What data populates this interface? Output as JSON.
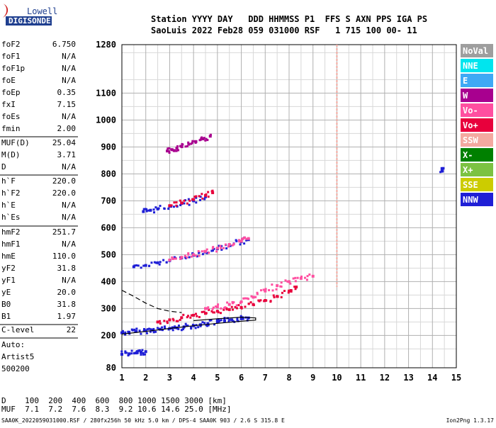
{
  "logo": {
    "line1": "Lowell",
    "line2": "DIGISONDE"
  },
  "header": {
    "row1": "Station YYYY DAY   DDD HHMMSS P1  FFS S AXN PPS IGA PS",
    "row2": "SaoLuis 2022 Feb28 059 031000 RSF   1 715 100 00- 11"
  },
  "params": [
    {
      "label": "foF2",
      "value": "6.750"
    },
    {
      "label": "foF1",
      "value": "N/A"
    },
    {
      "label": "foF1p",
      "value": "N/A"
    },
    {
      "label": "foE",
      "value": "N/A"
    },
    {
      "label": "foEp",
      "value": "0.35"
    },
    {
      "label": "fxI",
      "value": "7.15"
    },
    {
      "label": "foEs",
      "value": "N/A"
    },
    {
      "label": "fmin",
      "value": "2.00"
    },
    {
      "label": "MUF(D)",
      "value": "25.04"
    },
    {
      "label": "M(D)",
      "value": "3.71"
    },
    {
      "label": "D",
      "value": "N/A"
    },
    {
      "label": "h`F",
      "value": "220.0"
    },
    {
      "label": "h`F2",
      "value": "220.0"
    },
    {
      "label": "h`E",
      "value": "N/A"
    },
    {
      "label": "h`Es",
      "value": "N/A"
    },
    {
      "label": "hmF2",
      "value": "251.7"
    },
    {
      "label": "hmF1",
      "value": "N/A"
    },
    {
      "label": "hmE",
      "value": "110.0"
    },
    {
      "label": "yF2",
      "value": "31.8"
    },
    {
      "label": "yF1",
      "value": "N/A"
    },
    {
      "label": "yE",
      "value": "20.0"
    },
    {
      "label": "B0",
      "value": "31.8"
    },
    {
      "label": "B1",
      "value": "1.97"
    },
    {
      "label": "C-level",
      "value": "22"
    }
  ],
  "autoscale": {
    "line1": "Auto:",
    "line2": "Artist5",
    "line3": "500200"
  },
  "legend": [
    {
      "label": "NoVal",
      "bg": "#9e9e9e",
      "fg": "#ffffff"
    },
    {
      "label": "NNE",
      "bg": "#00e5ee",
      "fg": "#ffffff"
    },
    {
      "label": "E",
      "bg": "#3fa9f5",
      "fg": "#ffffff"
    },
    {
      "label": "W",
      "bg": "#a8008f",
      "fg": "#ffffff"
    },
    {
      "label": "Vo-",
      "bg": "#ff4fa0",
      "fg": "#ffffff"
    },
    {
      "label": "Vo+",
      "bg": "#e8003c",
      "fg": "#ffffff"
    },
    {
      "label": "SSW",
      "bg": "#f4a9a0",
      "fg": "#ffffff"
    },
    {
      "label": "X-",
      "bg": "#008000",
      "fg": "#ffffff"
    },
    {
      "label": "X+",
      "bg": "#7cc242",
      "fg": "#ffffff"
    },
    {
      "label": "SSE",
      "bg": "#cccc00",
      "fg": "#ffffff"
    },
    {
      "label": "NNW",
      "bg": "#1f1fd6",
      "fg": "#ffffff"
    }
  ],
  "muf_table": {
    "row1": "D    100  200  400  600  800 1000 1500 3000 [km]",
    "row2": "MUF  7.1  7.2  7.6  8.3  9.2 10.6 14.6 25.0 [MHz]"
  },
  "footer": {
    "left": "SAA0K_2022059031000.RSF / 280fx256h 50 kHz 5.0 km / DPS-4 SAA0K 903 / 2.6 S 315.8 E",
    "right": "Ion2Png 1.3.17"
  },
  "chart_data": {
    "type": "scatter",
    "x_ticks": [
      1,
      2,
      3,
      4,
      5,
      6,
      7,
      8,
      9,
      10,
      11,
      12,
      13,
      14,
      15
    ],
    "y_ticks": [
      80,
      200,
      300,
      400,
      500,
      600,
      700,
      800,
      900,
      1000,
      1100,
      1280
    ],
    "xlim": [
      1,
      15
    ],
    "ylim": [
      80,
      1280
    ],
    "grid": true,
    "legend_placement": "right",
    "traces": [
      {
        "color": "#1f1fd6",
        "points": [
          [
            1.0,
            210
          ],
          [
            1.3,
            212
          ],
          [
            1.6,
            215
          ],
          [
            2.0,
            218
          ],
          [
            2.3,
            220
          ],
          [
            2.6,
            223
          ],
          [
            3.0,
            226
          ],
          [
            3.3,
            228
          ],
          [
            3.6,
            232
          ],
          [
            4.0,
            236
          ],
          [
            4.3,
            240
          ],
          [
            4.6,
            244
          ],
          [
            5.0,
            250
          ],
          [
            5.3,
            254
          ],
          [
            5.6,
            258
          ],
          [
            6.0,
            262
          ],
          [
            6.3,
            265
          ]
        ]
      },
      {
        "color": "#e8003c",
        "points": [
          [
            2.5,
            250
          ],
          [
            3.0,
            258
          ],
          [
            3.5,
            266
          ],
          [
            4.0,
            275
          ],
          [
            4.5,
            282
          ],
          [
            5.0,
            290
          ],
          [
            5.5,
            296
          ],
          [
            6.0,
            304
          ],
          [
            6.5,
            315
          ],
          [
            7.0,
            330
          ],
          [
            7.5,
            345
          ],
          [
            8.0,
            365
          ],
          [
            8.3,
            380
          ]
        ]
      },
      {
        "color": "#ff4fa0",
        "points": [
          [
            4.5,
            300
          ],
          [
            5.0,
            306
          ],
          [
            5.5,
            315
          ],
          [
            6.0,
            325
          ],
          [
            6.5,
            342
          ],
          [
            7.0,
            365
          ],
          [
            7.5,
            385
          ],
          [
            8.0,
            400
          ],
          [
            8.5,
            412
          ],
          [
            9.0,
            420
          ]
        ]
      },
      {
        "color": "#1f1fd6",
        "points": [
          [
            1.5,
            455
          ],
          [
            2.0,
            460
          ],
          [
            2.5,
            470
          ],
          [
            3.0,
            478
          ],
          [
            3.5,
            488
          ],
          [
            4.0,
            498
          ],
          [
            4.5,
            510
          ],
          [
            5.0,
            522
          ],
          [
            5.5,
            535
          ],
          [
            6.0,
            548
          ],
          [
            6.3,
            556
          ]
        ]
      },
      {
        "color": "#ff4fa0",
        "points": [
          [
            3.0,
            480
          ],
          [
            3.5,
            490
          ],
          [
            4.0,
            500
          ],
          [
            4.5,
            512
          ],
          [
            5.0,
            524
          ],
          [
            5.5,
            538
          ],
          [
            6.0,
            550
          ],
          [
            6.3,
            560
          ]
        ]
      },
      {
        "color": "#1f1fd6",
        "points": [
          [
            1.9,
            660
          ],
          [
            2.2,
            665
          ],
          [
            2.5,
            670
          ],
          [
            3.0,
            680
          ],
          [
            3.5,
            690
          ],
          [
            4.0,
            700
          ],
          [
            4.5,
            715
          ]
        ]
      },
      {
        "color": "#e8003c",
        "points": [
          [
            3.0,
            682
          ],
          [
            3.5,
            692
          ],
          [
            4.0,
            705
          ],
          [
            4.5,
            720
          ],
          [
            4.8,
            730
          ]
        ]
      },
      {
        "color": "#a8008f",
        "points": [
          [
            2.9,
            885
          ],
          [
            3.1,
            890
          ],
          [
            3.3,
            896
          ],
          [
            3.5,
            902
          ],
          [
            3.8,
            910
          ],
          [
            4.1,
            920
          ],
          [
            4.4,
            930
          ],
          [
            4.7,
            940
          ]
        ]
      },
      {
        "color": "#1f1fd6",
        "points": [
          [
            1.0,
            130
          ],
          [
            1.3,
            132
          ],
          [
            1.6,
            135
          ],
          [
            1.8,
            138
          ],
          [
            2.0,
            140
          ]
        ]
      },
      {
        "color": "#1f1fd6",
        "points": [
          [
            14.4,
            810
          ],
          [
            14.4,
            820
          ]
        ]
      }
    ],
    "curves": [
      {
        "style": "solid",
        "points": [
          [
            1.0,
            205
          ],
          [
            2.0,
            215
          ],
          [
            3.0,
            226
          ],
          [
            4.0,
            236
          ],
          [
            5.0,
            245
          ],
          [
            6.0,
            253
          ],
          [
            6.6,
            257
          ],
          [
            6.6,
            265
          ],
          [
            6.0,
            268
          ],
          [
            5.0,
            262
          ],
          [
            4.0,
            255
          ]
        ]
      },
      {
        "style": "dashed",
        "points": [
          [
            1.0,
            368
          ],
          [
            1.5,
            345
          ],
          [
            2.0,
            320
          ],
          [
            2.5,
            300
          ],
          [
            3.0,
            290
          ],
          [
            3.5,
            285
          ]
        ]
      }
    ],
    "vertical_trace": {
      "x": 10.0,
      "y_from": 380,
      "y_to": 1280,
      "color": "#f4a9a0"
    }
  }
}
